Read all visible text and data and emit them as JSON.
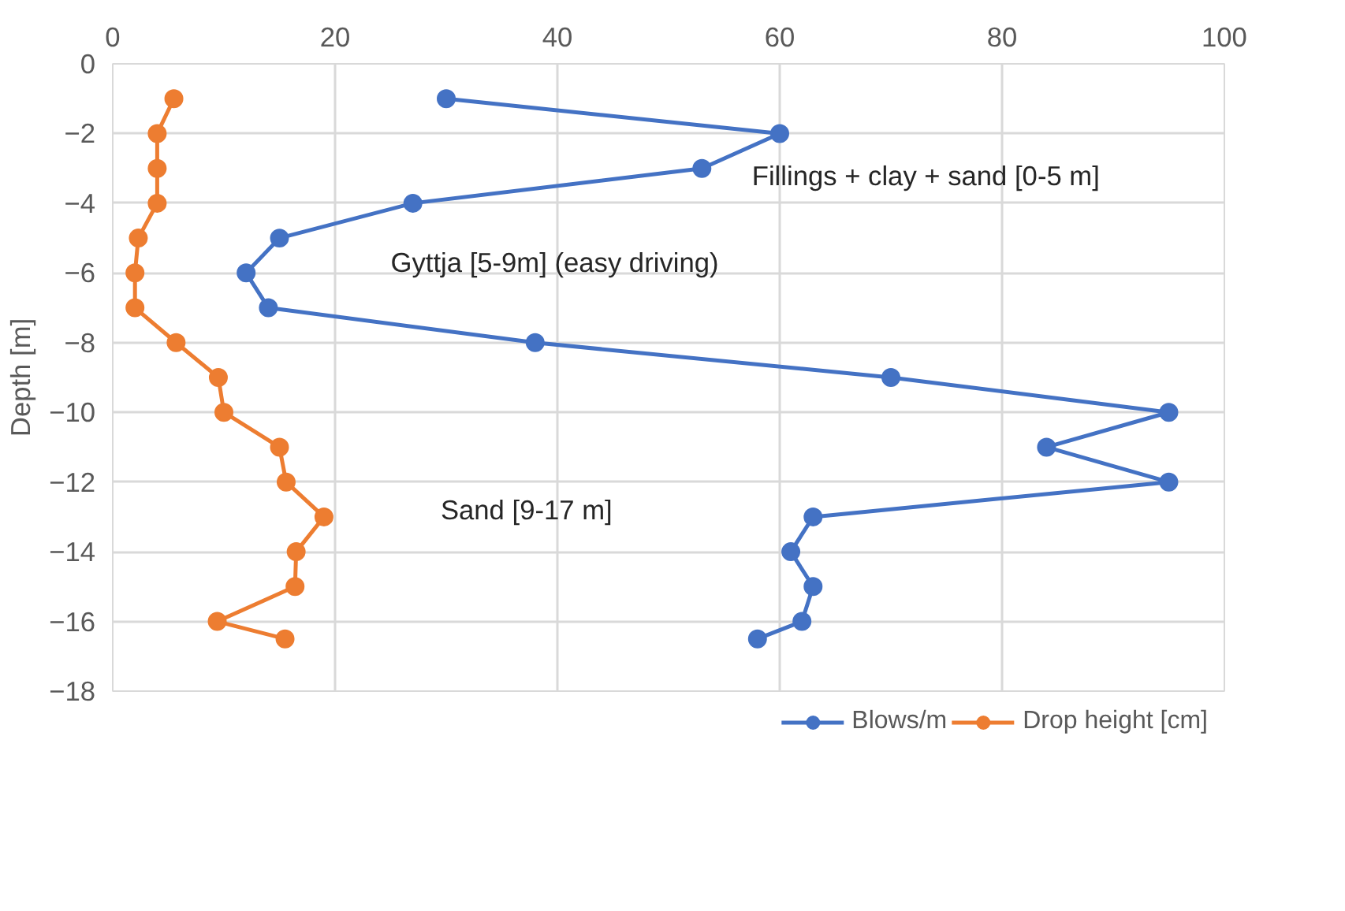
{
  "chart_data": {
    "type": "line",
    "ylabel": "Depth [m]",
    "xlim": [
      0,
      100
    ],
    "xticks": [
      0,
      20,
      40,
      60,
      80,
      100
    ],
    "ylim": [
      -18,
      0
    ],
    "yticks": [
      -18,
      -16,
      -14,
      -12,
      -10,
      -8,
      -6,
      -4,
      -2,
      0
    ],
    "grid": true,
    "legend": "bottom",
    "marker": "circle",
    "line_style": "solid",
    "series": [
      {
        "name": "Blows/m",
        "color": "#4472c4",
        "x": [
          30,
          60,
          53,
          27,
          15,
          12,
          14,
          38,
          70,
          95,
          84,
          95,
          63,
          61,
          63,
          62,
          58
        ],
        "values": [
          -1,
          -2,
          -3,
          -4,
          -5,
          -6,
          -7,
          -8,
          -9,
          -10,
          -11,
          -12,
          -13,
          -14,
          -15,
          -16,
          -16.5
        ]
      },
      {
        "name": "Drop height [cm]",
        "color": "#ed7d31",
        "x": [
          5.5,
          4,
          4,
          4,
          2.3,
          2,
          2,
          5.7,
          9.5,
          10,
          15,
          15.6,
          19,
          16.5,
          16.4,
          9.4,
          15.5
        ],
        "values": [
          -1,
          -2,
          -3,
          -4,
          -5,
          -6,
          -7,
          -8,
          -9,
          -10,
          -11,
          -12,
          -13,
          -14,
          -15,
          -16,
          -16.5
        ]
      }
    ],
    "annotations": [
      "Fillings + clay + sand [0-5 m]",
      "Gyttja [5-9m] (easy driving)",
      "Sand [9-17 m]"
    ]
  }
}
